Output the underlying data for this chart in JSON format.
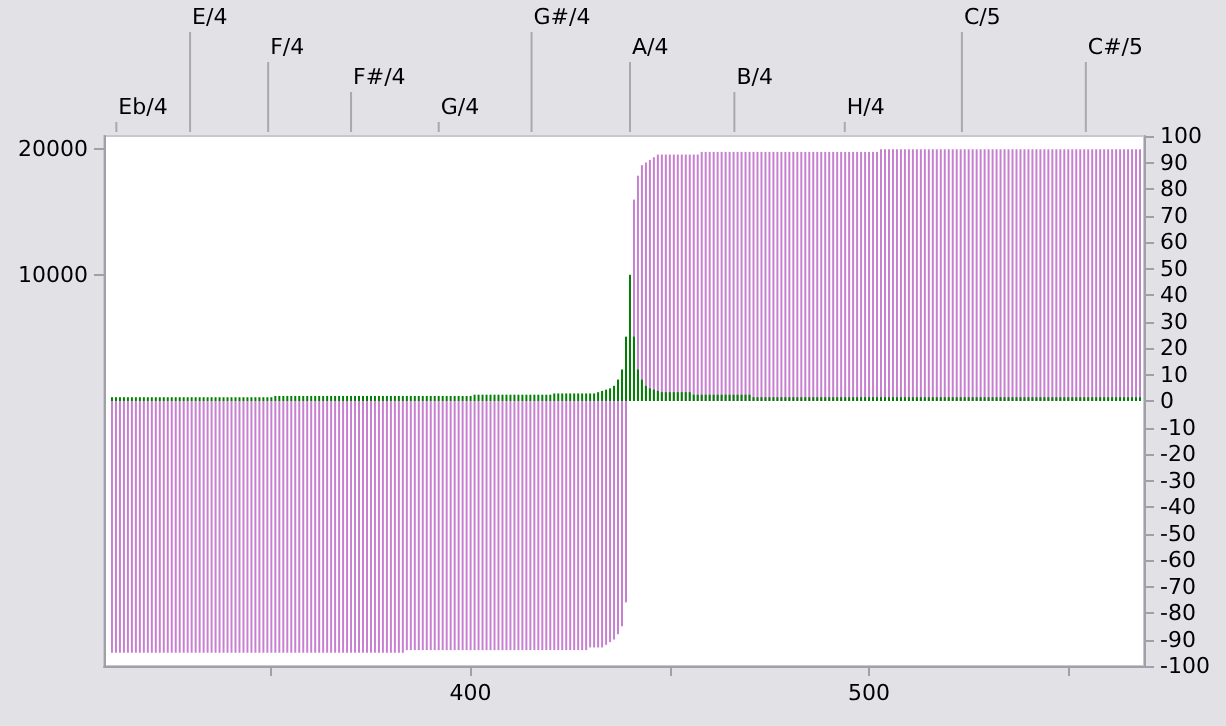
{
  "chart_data": {
    "type": "bar",
    "x": [
      310,
      311,
      312,
      313,
      314,
      315,
      316,
      317,
      318,
      319,
      320,
      321,
      322,
      323,
      324,
      325,
      326,
      327,
      328,
      329,
      330,
      331,
      332,
      333,
      334,
      335,
      336,
      337,
      338,
      339,
      340,
      341,
      342,
      343,
      344,
      345,
      346,
      347,
      348,
      349,
      350,
      351,
      352,
      353,
      354,
      355,
      356,
      357,
      358,
      359,
      360,
      361,
      362,
      363,
      364,
      365,
      366,
      367,
      368,
      369,
      370,
      371,
      372,
      373,
      374,
      375,
      376,
      377,
      378,
      379,
      380,
      381,
      382,
      383,
      384,
      385,
      386,
      387,
      388,
      389,
      390,
      391,
      392,
      393,
      394,
      395,
      396,
      397,
      398,
      399,
      400,
      401,
      402,
      403,
      404,
      405,
      406,
      407,
      408,
      409,
      410,
      411,
      412,
      413,
      414,
      415,
      416,
      417,
      418,
      419,
      420,
      421,
      422,
      423,
      424,
      425,
      426,
      427,
      428,
      429,
      430,
      431,
      432,
      433,
      434,
      435,
      436,
      437,
      438,
      439,
      440,
      441,
      442,
      443,
      444,
      445,
      446,
      447,
      448,
      449,
      450,
      451,
      452,
      453,
      454,
      455,
      456,
      457,
      458,
      459,
      460,
      461,
      462,
      463,
      464,
      465,
      466,
      467,
      468,
      469,
      470,
      471,
      472,
      473,
      474,
      475,
      476,
      477,
      478,
      479,
      480,
      481,
      482,
      483,
      484,
      485,
      486,
      487,
      488,
      489,
      490,
      491,
      492,
      493,
      494,
      495,
      496,
      497,
      498,
      499,
      500,
      501,
      502,
      503,
      504,
      505,
      506,
      507,
      508,
      509,
      510,
      511,
      512,
      513,
      514,
      515,
      516,
      517,
      518,
      519,
      520,
      521,
      522,
      523,
      524,
      525,
      526,
      527,
      528,
      529,
      530,
      531,
      532,
      533,
      534,
      535,
      536,
      537,
      538,
      539,
      540,
      541,
      542,
      543,
      544,
      545,
      546,
      547,
      548,
      549,
      550,
      551,
      552,
      553,
      554,
      555,
      556,
      557,
      558,
      559,
      560,
      561,
      562,
      563,
      564,
      565,
      566,
      567,
      568
    ],
    "series": [
      {
        "color": "#c77fd0",
        "axis": "y2",
        "values": [
          -95,
          -95,
          -95,
          -95,
          -95,
          -95,
          -95,
          -95,
          -95,
          -95,
          -95,
          -95,
          -95,
          -95,
          -95,
          -95,
          -95,
          -95,
          -95,
          -95,
          -95,
          -95,
          -95,
          -95,
          -95,
          -95,
          -95,
          -95,
          -95,
          -95,
          -95,
          -95,
          -95,
          -95,
          -95,
          -95,
          -95,
          -95,
          -95,
          -95,
          -95,
          -95,
          -95,
          -95,
          -95,
          -95,
          -95,
          -95,
          -95,
          -95,
          -95,
          -95,
          -95,
          -95,
          -95,
          -95,
          -95,
          -95,
          -95,
          -95,
          -95,
          -95,
          -95,
          -95,
          -95,
          -95,
          -95,
          -95,
          -95,
          -95,
          -95,
          -95,
          -95,
          -95,
          -94,
          -94,
          -94,
          -94,
          -94,
          -94,
          -94,
          -94,
          -94,
          -94,
          -94,
          -94,
          -94,
          -94,
          -94,
          -94,
          -94,
          -94,
          -94,
          -94,
          -94,
          -94,
          -94,
          -94,
          -94,
          -94,
          -94,
          -94,
          -94,
          -94,
          -94,
          -94,
          -94,
          -94,
          -94,
          -94,
          -94,
          -94,
          -94,
          -94,
          -94,
          -94,
          -94,
          -94,
          -94,
          -94,
          -93,
          -93,
          -93,
          -93,
          -92,
          -91,
          -90,
          -88,
          -85,
          -76,
          0,
          76,
          85,
          89,
          90,
          91,
          92,
          93,
          93,
          93,
          93,
          93,
          93,
          93,
          93,
          93,
          93,
          93,
          94,
          94,
          94,
          94,
          94,
          94,
          94,
          94,
          94,
          94,
          94,
          94,
          94,
          94,
          94,
          94,
          94,
          94,
          94,
          94,
          94,
          94,
          94,
          94,
          94,
          94,
          94,
          94,
          94,
          94,
          94,
          94,
          94,
          94,
          94,
          94,
          94,
          94,
          94,
          94,
          94,
          94,
          94,
          94,
          94,
          95,
          95,
          95,
          95,
          95,
          95,
          95,
          95,
          95,
          95,
          95,
          95,
          95,
          95,
          95,
          95,
          95,
          95,
          95,
          95,
          95,
          95,
          95,
          95,
          95,
          95,
          95,
          95,
          95,
          95,
          95,
          95,
          95,
          95,
          95,
          95,
          95,
          95,
          95,
          95,
          95,
          95,
          95,
          95,
          95,
          95,
          95,
          95,
          95,
          95,
          95,
          95,
          95,
          95,
          95,
          95,
          95,
          95,
          95,
          95,
          95,
          95,
          95,
          95,
          95,
          95
        ]
      },
      {
        "color": "#008000",
        "values": [
          300,
          300,
          300,
          300,
          300,
          300,
          300,
          300,
          300,
          300,
          300,
          300,
          300,
          300,
          300,
          300,
          300,
          300,
          300,
          300,
          300,
          300,
          300,
          300,
          300,
          300,
          300,
          300,
          300,
          300,
          300,
          300,
          300,
          300,
          300,
          300,
          300,
          300,
          300,
          300,
          300,
          400,
          400,
          400,
          400,
          400,
          400,
          400,
          400,
          400,
          400,
          400,
          400,
          400,
          400,
          400,
          400,
          400,
          400,
          400,
          400,
          400,
          400,
          400,
          400,
          400,
          400,
          400,
          400,
          400,
          400,
          400,
          400,
          400,
          400,
          400,
          400,
          400,
          400,
          400,
          400,
          400,
          400,
          400,
          400,
          400,
          400,
          400,
          400,
          400,
          400,
          500,
          500,
          500,
          500,
          500,
          500,
          500,
          500,
          500,
          500,
          500,
          500,
          500,
          500,
          500,
          500,
          500,
          500,
          500,
          500,
          600,
          600,
          600,
          600,
          600,
          600,
          600,
          600,
          600,
          600,
          600,
          700,
          800,
          900,
          1000,
          1200,
          1700,
          2500,
          5100,
          10000,
          5100,
          2500,
          1700,
          1200,
          1000,
          900,
          800,
          700,
          700,
          700,
          700,
          700,
          700,
          700,
          700,
          500,
          500,
          500,
          500,
          500,
          500,
          500,
          500,
          500,
          500,
          500,
          500,
          500,
          500,
          500,
          300,
          300,
          300,
          300,
          300,
          300,
          300,
          300,
          300,
          300,
          300,
          300,
          300,
          300,
          300,
          300,
          300,
          300,
          300,
          300,
          300,
          300,
          300,
          300,
          300,
          300,
          300,
          300,
          300,
          300,
          300,
          300,
          300,
          300,
          300,
          300,
          300,
          300,
          300,
          300,
          300,
          300,
          300,
          300,
          300,
          300,
          300,
          300,
          300,
          300,
          300,
          300,
          300,
          300,
          300,
          300,
          300,
          300,
          300,
          300,
          300,
          300,
          300,
          300,
          300,
          300,
          300,
          300,
          300,
          300,
          300,
          300,
          300,
          300,
          300,
          300,
          300,
          300,
          300,
          300,
          300,
          300,
          300,
          300,
          300,
          300,
          300,
          300,
          300,
          300,
          300,
          300,
          300,
          300,
          300,
          300,
          300,
          300
        ]
      }
    ],
    "xlim": [
      308,
      569
    ],
    "xticks": [
      {
        "value": 350,
        "label": null
      },
      400,
      {
        "value": 450,
        "label": null
      },
      500,
      {
        "value": 550,
        "label": null
      }
    ],
    "ref_lines": [
      {
        "axis": "x",
        "value": 311.1,
        "label": "Eb/4"
      },
      {
        "axis": "x",
        "value": 329.6,
        "label": "E/4"
      },
      {
        "axis": "x",
        "value": 349.2,
        "label": "F/4"
      },
      {
        "axis": "x",
        "value": 370.0,
        "label": "F#/4"
      },
      {
        "axis": "x",
        "value": 392.0,
        "label": "G/4"
      },
      {
        "axis": "x",
        "value": 415.3,
        "label": "G#/4"
      },
      {
        "axis": "x",
        "value": 440.0,
        "label": "A/4"
      },
      {
        "axis": "x",
        "value": 466.2,
        "label": "B/4"
      },
      {
        "axis": "x",
        "value": 493.9,
        "label": "H/4"
      },
      {
        "axis": "x",
        "value": 523.3,
        "label": "C/5"
      },
      {
        "axis": "x",
        "value": 554.4,
        "label": "C#/5"
      }
    ],
    "ylim": [
      -21000,
      21000
    ],
    "yticks": [
      10000,
      20000
    ],
    "y2lim": [
      -100,
      100
    ],
    "y2ticks": [
      -100,
      -90,
      -80,
      -70,
      -60,
      -50,
      -40,
      -30,
      -20,
      -10,
      0,
      10,
      20,
      30,
      40,
      50,
      60,
      70,
      80,
      90,
      100
    ],
    "grid": false
  }
}
